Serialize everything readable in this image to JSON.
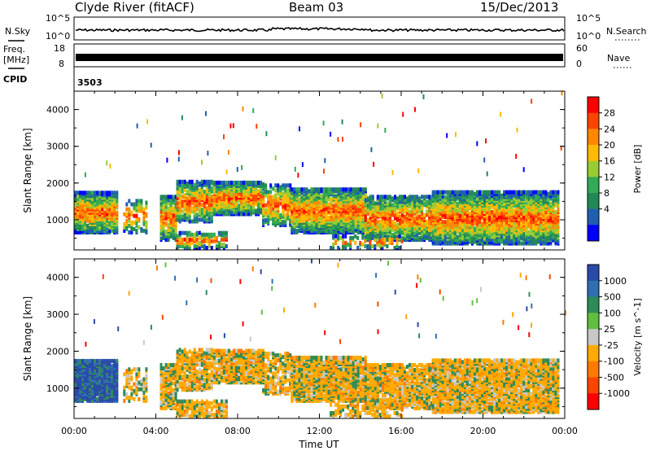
{
  "header": {
    "station": "Clyde River (fitACF)",
    "beam": "Beam 03",
    "date": "15/Dec/2013"
  },
  "noise_panel": {
    "left_label": "N.Sky",
    "right_label": "N.Search",
    "left_ticks": [
      "10^5",
      "10^0"
    ],
    "right_ticks": [
      "10^5",
      "10^0"
    ]
  },
  "freq_panel": {
    "left_label_1": "Freq.",
    "left_label_2": "[MHz]",
    "right_label": "Nave",
    "left_ticks": [
      "18",
      "8"
    ],
    "right_ticks": [
      "60",
      "0"
    ]
  },
  "cpid": {
    "label": "CPID",
    "value": "3503"
  },
  "chart_data": [
    {
      "type": "heatmap",
      "title": "",
      "xlabel": "Time UT",
      "ylabel": "Slant Range [km]",
      "xlim": [
        0,
        24
      ],
      "ylim": [
        180,
        4500
      ],
      "x_ticks": [
        "00:00",
        "04:00",
        "08:00",
        "12:00",
        "16:00",
        "20:00",
        "00:00"
      ],
      "y_ticks": [
        "1000",
        "2000",
        "3000",
        "4000"
      ],
      "colorbar": {
        "label": "Power [dB]",
        "ticks": [
          "28",
          "24",
          "20",
          "16",
          "12",
          "8",
          "4"
        ],
        "colors": [
          "#ff0000",
          "#ff4400",
          "#ff8800",
          "#ffbb00",
          "#99cc33",
          "#33aa55",
          "#228855",
          "#1f5fb0",
          "#0000ff"
        ]
      }
    },
    {
      "type": "heatmap",
      "title": "",
      "xlabel": "Time UT",
      "ylabel": "Slant Range [km]",
      "xlim": [
        0,
        24
      ],
      "ylim": [
        180,
        4500
      ],
      "x_ticks": [
        "00:00",
        "04:00",
        "08:00",
        "12:00",
        "16:00",
        "20:00",
        "00:00"
      ],
      "y_ticks": [
        "1000",
        "2000",
        "3000",
        "4000"
      ],
      "colorbar": {
        "label": "Velocity [m s^-1]",
        "ticks": [
          "1000",
          "500",
          "100",
          "25",
          "-25",
          "-100",
          "-500",
          "-1000"
        ],
        "colors": [
          "#2a4aa8",
          "#2f6fb0",
          "#2e8b57",
          "#5fbf3f",
          "#c8c8c8",
          "#ffaa00",
          "#ff7a00",
          "#ff4400",
          "#ff0000"
        ]
      }
    }
  ]
}
